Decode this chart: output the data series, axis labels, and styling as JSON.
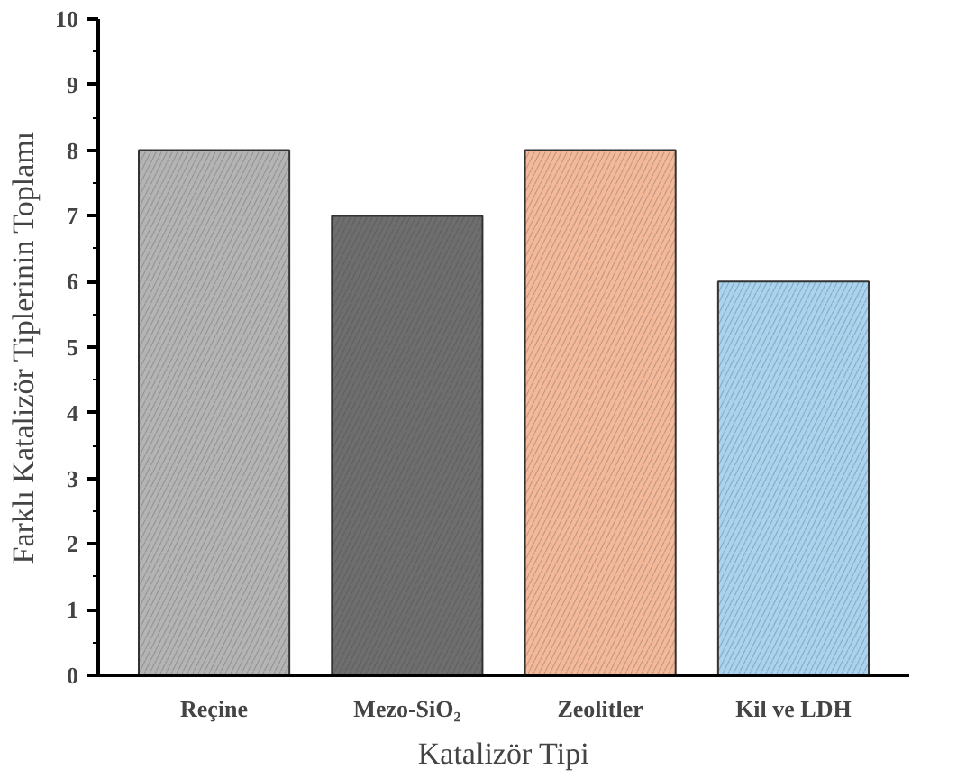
{
  "chart_data": {
    "type": "bar",
    "categories": [
      "Reçine",
      "Mezo-SiO₂",
      "Zeolitler",
      "Kil ve LDH"
    ],
    "values": [
      8,
      7,
      8,
      6
    ],
    "colors": [
      "#b4b4b4",
      "#6e6e6e",
      "#f4b99a",
      "#a9d3ee"
    ],
    "xlabel": "Katalizör Tipi",
    "ylabel": "Farklı Katalizör Tiplerinin Toplamı",
    "ylim": [
      0,
      10
    ],
    "yticks": [
      0,
      1,
      2,
      3,
      4,
      5,
      6,
      7,
      8,
      9,
      10
    ],
    "grid": false
  }
}
